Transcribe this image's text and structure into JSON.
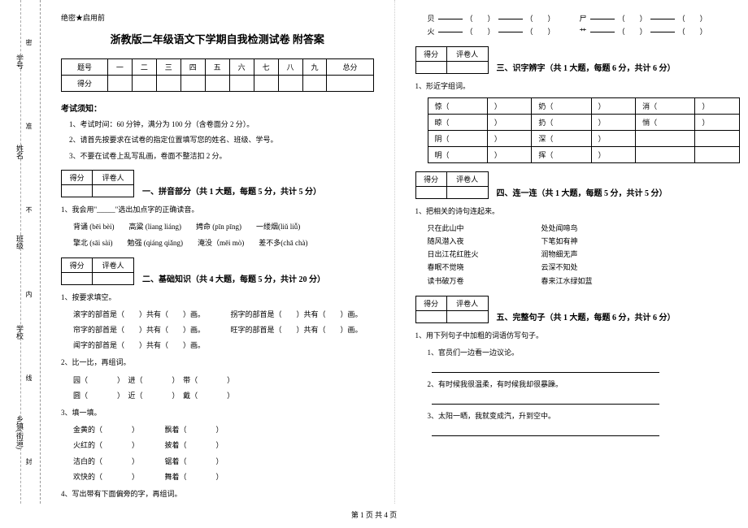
{
  "binding": {
    "labels": [
      "学号",
      "姓名",
      "班级",
      "学校",
      "乡镇(街道)"
    ],
    "marks": [
      "密",
      "准",
      "不",
      "内",
      "线",
      "封"
    ]
  },
  "classified": "绝密★启用前",
  "title": "浙教版二年级语文下学期自我检测试卷 附答案",
  "score_headers": [
    "题号",
    "一",
    "二",
    "三",
    "四",
    "五",
    "六",
    "七",
    "八",
    "九",
    "总分"
  ],
  "score_row": "得分",
  "notice_title": "考试须知：",
  "notices": [
    "1、考试时间：60 分钟，满分为 100 分（含卷面分 2 分）。",
    "2、请首先按要求在试卷的指定位置填写您的姓名、班级、学号。",
    "3、不要在试卷上乱写乱画，卷面不整洁扣 2 分。"
  ],
  "sec_score": {
    "c1": "得分",
    "c2": "评卷人"
  },
  "sec1": {
    "title": "一、拼音部分（共 1 大题，每题 5 分，共计 5 分）",
    "q1": "1、我会用\"_____\"选出加点字的正确读音。",
    "line1": "背诵 (bēi bèi)　　高粱 (liang liáng)　　娉命 (pīn pīng)　　一缕烟(liǔ liǚ)",
    "line2": "擎北 (sāi sài)　　勉强 (qiáng qiǎng)　　淹没（mēi mò)　　差不多(chā chà)"
  },
  "sec2": {
    "title": "二、基础知识（共 4 大题，每题 5 分，共计 20 分）",
    "q1": "1、按要求填空。",
    "l1a": "滚字的部首是（　　）共有（　　）画。",
    "l1b": "拐字的部首是（　　）共有（　　）画。",
    "l2a": "帘字的部首是（　　）共有（　　）画。",
    "l2b": "旺字的部首是（　　）共有（　　）画。",
    "l3a": "闻字的部首是（　　）共有（　　）画。",
    "q2": "2、比一比，再组词。",
    "pairs": [
      [
        "园（",
        "进（",
        "带（"
      ],
      [
        "圆（",
        "近（",
        "戴（"
      ]
    ],
    "q3": "3、填一填。",
    "fills": [
      [
        "金黄的（",
        "飘着（"
      ],
      [
        "火红的（",
        "披着（"
      ],
      [
        "洁白的（",
        "锯着（"
      ],
      [
        "欢快的（",
        "舞着（"
      ]
    ],
    "q4": "4、写出带有下面偏旁的字，再组词。"
  },
  "radicals": [
    {
      "char": "贝",
      "items": 3
    },
    {
      "char": "尸",
      "items": 3
    },
    {
      "char": "火",
      "items": 3
    },
    {
      "char": "艹",
      "items": 3
    }
  ],
  "sec3": {
    "title": "三、识字辨字（共 1 大题，每题 6 分，共计 6 分）",
    "q1": "1、形近字组词。",
    "rows": [
      [
        "惊（",
        "奶（",
        "消（"
      ],
      [
        "晾（",
        "扔（",
        "悄（"
      ],
      [
        "阴（",
        "深（",
        ""
      ],
      [
        "明（",
        "挥（",
        ""
      ]
    ]
  },
  "sec4": {
    "title": "四、连一连（共 1 大题，每题 5 分，共计 5 分）",
    "q1": "1、把相关的诗句连起来。",
    "pairs": [
      [
        "只在此山中",
        "处处闻啼鸟"
      ],
      [
        "随风潜入夜",
        "下笔如有神"
      ],
      [
        "日出江花红胜火",
        "润物细无声"
      ],
      [
        "春眠不觉晓",
        "云深不知处"
      ],
      [
        "读书破万卷",
        "春来江水绿如蓝"
      ]
    ]
  },
  "sec5": {
    "title": "五、完整句子（共 1 大题，每题 6 分，共计 6 分）",
    "q1": "1、用下列句子中加粗的词语仿写句子。",
    "items": [
      "1、官员们一边看一边议论。",
      "2、有时候我很温柔，有时候我却很暴躁。",
      "3、太阳一晒，我就变成汽，升到空中。"
    ]
  },
  "footer": "第 1 页 共 4 页"
}
